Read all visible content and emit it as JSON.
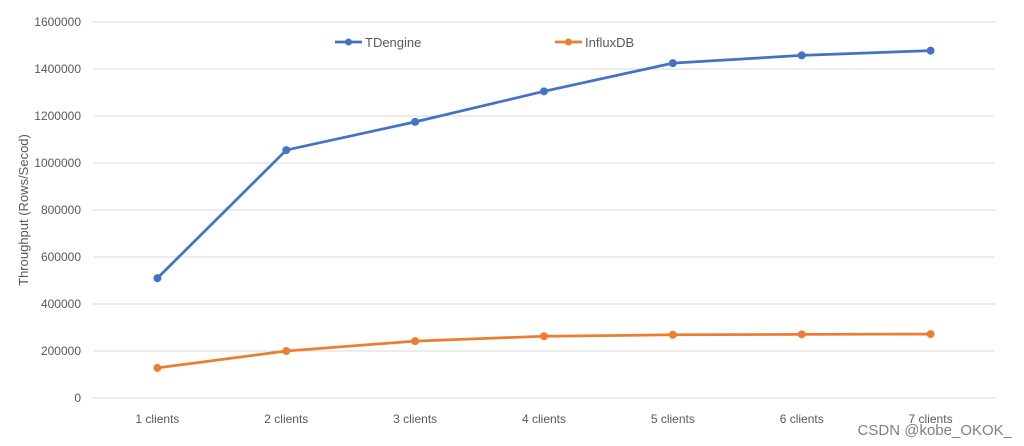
{
  "chart_data": {
    "type": "line",
    "title": "",
    "xlabel": "",
    "ylabel": "Throughput (Rows/Secod)",
    "categories": [
      "1 clients",
      "2 clients",
      "3 clients",
      "4 clients",
      "5 clients",
      "6 clients",
      "7 clients"
    ],
    "ylim": [
      0,
      1600000
    ],
    "yticks": [
      0,
      200000,
      400000,
      600000,
      800000,
      1000000,
      1200000,
      1400000,
      1600000
    ],
    "ytick_labels": [
      "0",
      "200000",
      "400000",
      "600000",
      "800000",
      "1000000",
      "1200000",
      "1400000",
      "1600000"
    ],
    "grid": true,
    "legend_position": "top-center",
    "series": [
      {
        "name": "TDengine",
        "color": "#4472c4",
        "values": [
          510000,
          1055000,
          1175000,
          1305000,
          1425000,
          1458000,
          1478000
        ]
      },
      {
        "name": "InfluxDB",
        "color": "#ed7d31",
        "values": [
          128000,
          200000,
          242000,
          263000,
          269000,
          271000,
          272000
        ]
      }
    ]
  },
  "watermark": {
    "text": "CSDN @kobe_OKOK_"
  }
}
